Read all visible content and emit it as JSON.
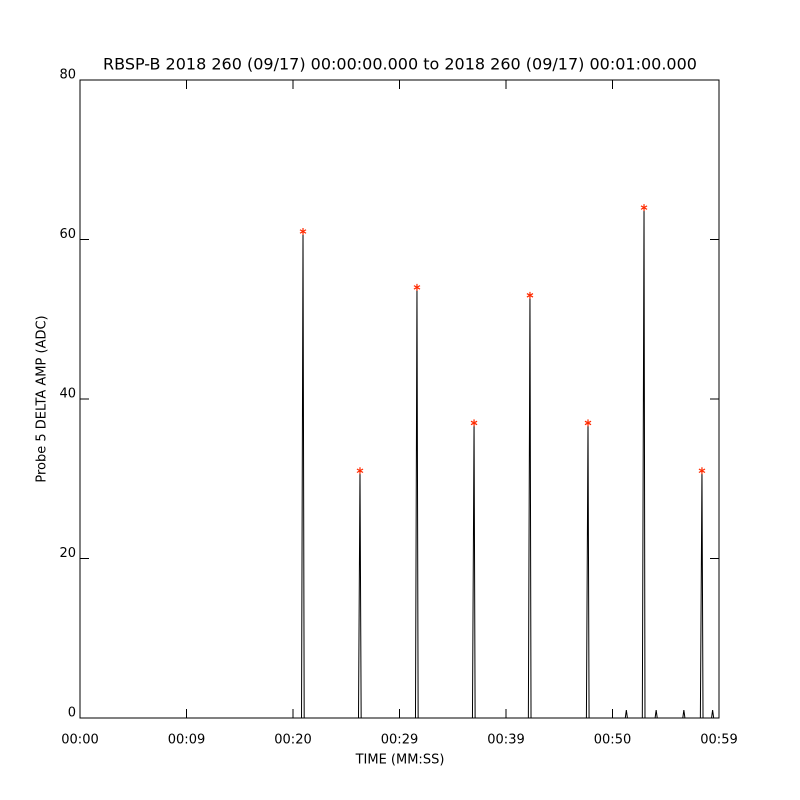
{
  "chart_data": {
    "type": "line",
    "title": "RBSP-B 2018 260 (09/17) 00:00:00.000 to 2018 260 (09/17) 00:01:00.000",
    "xlabel": "TIME (MM:SS)",
    "ylabel": "Probe 5 DELTA AMP (ADC)",
    "xlim": [
      0,
      60
    ],
    "ylim": [
      0,
      80
    ],
    "xticks": [
      {
        "value": 0,
        "label": "00:00"
      },
      {
        "value": 10,
        "label": "00:09"
      },
      {
        "value": 20,
        "label": "00:20"
      },
      {
        "value": 30,
        "label": "00:29"
      },
      {
        "value": 40,
        "label": "00:39"
      },
      {
        "value": 50,
        "label": "00:50"
      },
      {
        "value": 60,
        "label": "00:59"
      }
    ],
    "yticks": [
      0,
      20,
      40,
      60,
      80
    ],
    "series": [
      {
        "color": "#000000",
        "marker": "none",
        "x": [
          0,
          20.8,
          20.94,
          21.05,
          26.15,
          26.29,
          26.4,
          31.5,
          31.64,
          31.75,
          36.85,
          37.0,
          37.1,
          42.1,
          42.25,
          42.35,
          47.55,
          47.7,
          47.8,
          51.2,
          51.3,
          51.4,
          52.8,
          52.96,
          53.05,
          54.0,
          54.1,
          54.2,
          56.6,
          56.7,
          56.8,
          58.25,
          58.4,
          58.5,
          59.3,
          59.4,
          59.5,
          60
        ],
        "values": [
          0,
          0,
          61,
          0,
          0,
          31,
          0,
          0,
          54,
          0,
          0,
          37,
          0,
          0,
          53,
          0,
          0,
          37,
          0,
          0,
          1,
          0,
          0,
          64,
          0,
          0,
          1,
          0,
          0,
          1,
          0,
          0,
          31,
          0,
          0,
          1,
          0,
          0
        ]
      },
      {
        "color": "#ff2a00",
        "marker": "asterisk",
        "x": [
          20.94,
          26.29,
          31.64,
          37.0,
          42.25,
          47.7,
          52.96,
          58.4
        ],
        "values": [
          61,
          31,
          54,
          37,
          53,
          37,
          64,
          31
        ]
      }
    ]
  }
}
